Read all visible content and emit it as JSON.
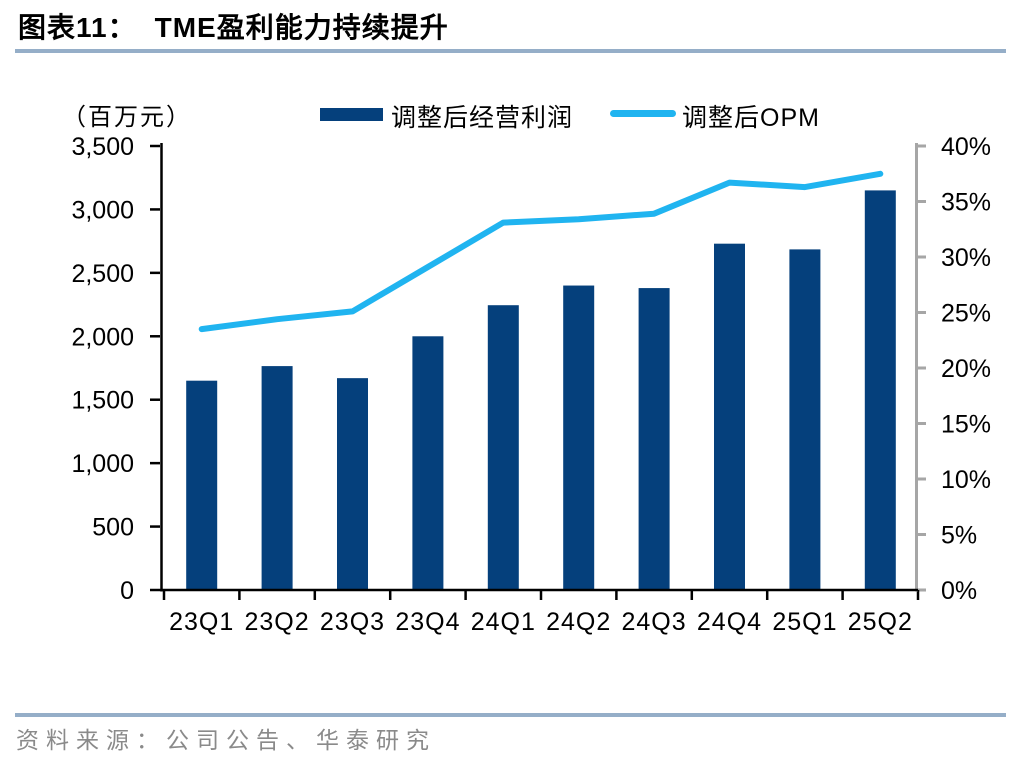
{
  "title": {
    "prefix": "图表11：",
    "text": "TME盈利能力持续提升"
  },
  "legend": {
    "items": [
      {
        "label": "调整后经营利润",
        "marker": "bar-swatch",
        "color": "#05407c"
      },
      {
        "label": "调整后OPM",
        "marker": "line-swatch",
        "color": "#20b4f0"
      }
    ]
  },
  "source": {
    "text": "资料来源：公司公告、华泰研究"
  },
  "colors": {
    "bar": "#05407c",
    "line": "#20b4f0",
    "divider_rule": "#95aec8",
    "left_axis": "#000000",
    "right_axis": "#a6a6a6",
    "source_text": "#8a8a8a"
  },
  "chart_data": {
    "type": "combo-bar-line",
    "title": "TME盈利能力持续提升",
    "categories": [
      "23Q1",
      "23Q2",
      "23Q3",
      "23Q4",
      "24Q1",
      "24Q2",
      "24Q3",
      "24Q4",
      "25Q1",
      "25Q2"
    ],
    "series": [
      {
        "name": "调整后经营利润",
        "type": "bar",
        "axis": "left",
        "color": "#05407c",
        "values": [
          1650,
          1765,
          1670,
          2000,
          2245,
          2400,
          2380,
          2730,
          2685,
          3150
        ]
      },
      {
        "name": "调整后OPM",
        "type": "line",
        "axis": "right",
        "color": "#20b4f0",
        "unit": "%",
        "values": [
          23.5,
          24.4,
          25.1,
          29.1,
          33.1,
          33.4,
          33.9,
          36.7,
          36.3,
          37.5
        ]
      }
    ],
    "left_axis": {
      "label": "（百万元）",
      "min": 0,
      "max": 3500,
      "tick_step": 500,
      "tick_labels": [
        "0",
        "500",
        "1,000",
        "1,500",
        "2,000",
        "2,500",
        "3,000",
        "3,500"
      ]
    },
    "right_axis": {
      "min": 0,
      "max": 40,
      "tick_step": 5,
      "tick_labels": [
        "0%",
        "5%",
        "10%",
        "15%",
        "20%",
        "25%",
        "30%",
        "35%",
        "40%"
      ]
    },
    "grid": false,
    "legend_position": "top"
  }
}
